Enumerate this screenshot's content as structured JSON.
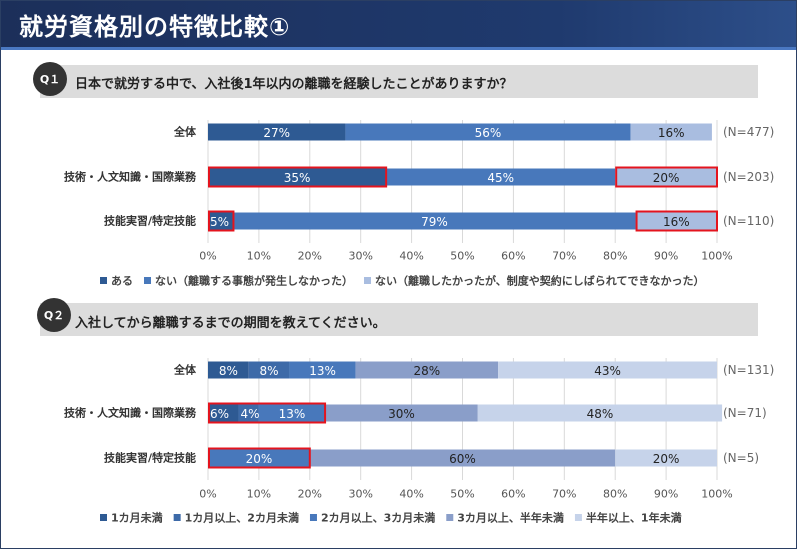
{
  "header": {
    "title": "就労資格別の特徴比較①"
  },
  "q1": {
    "badge": "Q１",
    "question": "日本で就労する中で、入社後1年以内の離職を経験したことがありますか？"
  },
  "q2": {
    "badge": "Q２",
    "question": "入社してから離職するまでの期間を教えてください。"
  },
  "colors": {
    "c1": "#2e5a93",
    "c2": "#4878bb",
    "c3": "#a9bde0",
    "c4": "#8a9ec9",
    "c5": "#c6d3ea",
    "highlight": "#e4141e"
  },
  "chart_data": [
    {
      "type": "bar",
      "orientation": "horizontal-stacked-100",
      "categories": [
        "全体",
        "技術・人文知識・国際業務",
        "技能実習/特定技能"
      ],
      "n_labels": [
        "(N=477)",
        "(N=203)",
        "(N=110)"
      ],
      "series": [
        {
          "name": "ある",
          "values": [
            27,
            35,
            5
          ],
          "labels": [
            "27%",
            "35%",
            "5%"
          ],
          "color": "#2e5a93"
        },
        {
          "name": "ない（離職する事態が発生しなかった）",
          "values": [
            56,
            45,
            79
          ],
          "labels": [
            "56%",
            "45%",
            "79%"
          ],
          "color": "#4878bb"
        },
        {
          "name": "ない（離職したかったが、制度や契約にしばられてできなかった）",
          "values": [
            16,
            20,
            16
          ],
          "labels": [
            "16%",
            "20%",
            "16%"
          ],
          "color": "#a9bde0"
        }
      ],
      "highlights": [
        [
          1,
          0
        ],
        [
          1,
          2
        ],
        [
          2,
          0
        ],
        [
          2,
          2
        ]
      ],
      "xticks": [
        "0%",
        "10%",
        "20%",
        "30%",
        "40%",
        "50%",
        "60%",
        "70%",
        "80%",
        "90%",
        "100%"
      ],
      "xlim": [
        0,
        100
      ],
      "legend_position": "bottom"
    },
    {
      "type": "bar",
      "orientation": "horizontal-stacked-100",
      "categories": [
        "全体",
        "技術・人文知識・国際業務",
        "技能実習/特定技能"
      ],
      "n_labels": [
        "(N=131)",
        "(N=71)",
        "(N=5)"
      ],
      "series": [
        {
          "name": "1カ月未満",
          "values": [
            8,
            6,
            0
          ],
          "labels": [
            "8%",
            "6%",
            ""
          ],
          "color": "#2e5a93"
        },
        {
          "name": "1カ月以上、2カ月未満",
          "values": [
            8,
            4,
            0
          ],
          "labels": [
            "8%",
            "4%",
            ""
          ],
          "color": "#3d6aa8"
        },
        {
          "name": "2カ月以上、3カ月未満",
          "values": [
            13,
            13,
            20
          ],
          "labels": [
            "13%",
            "13%",
            "20%"
          ],
          "color": "#4878bb"
        },
        {
          "name": "3カ月以上、半年未満",
          "values": [
            28,
            30,
            60
          ],
          "labels": [
            "28%",
            "30%",
            "60%"
          ],
          "color": "#8a9ec9"
        },
        {
          "name": "半年以上、1年未満",
          "values": [
            43,
            48,
            20
          ],
          "labels": [
            "43%",
            "48%",
            "20%"
          ],
          "color": "#c6d3ea"
        }
      ],
      "highlights": [
        [
          1,
          0
        ],
        [
          1,
          1
        ],
        [
          1,
          2
        ],
        [
          2,
          2
        ]
      ],
      "xticks": [
        "0%",
        "10%",
        "20%",
        "30%",
        "40%",
        "50%",
        "60%",
        "70%",
        "80%",
        "90%",
        "100%"
      ],
      "xlim": [
        0,
        100
      ],
      "legend_position": "bottom"
    }
  ]
}
